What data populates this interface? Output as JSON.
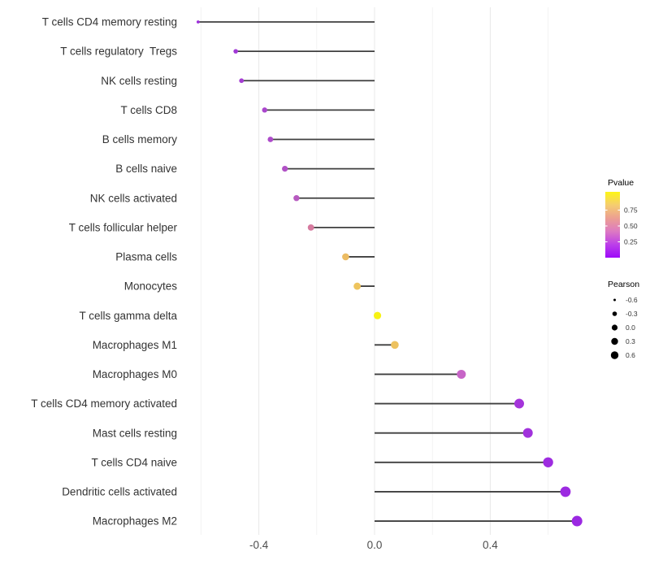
{
  "chart_data": {
    "type": "scatter",
    "variant": "lollipop",
    "title": "",
    "xlabel": "",
    "ylabel": "",
    "xlim": [
      -0.67,
      0.77
    ],
    "x_major_ticks": [
      -0.4,
      0.0,
      0.4
    ],
    "x_tick_labels": [
      "-0.4",
      "0.0",
      "0.4"
    ],
    "x_minor_gridlines": [
      -0.6,
      -0.2,
      0.2,
      0.6
    ],
    "grid": "vertical-only",
    "legend_position": "right",
    "categories": [
      "T cells CD4 memory resting",
      "T cells regulatory  Tregs",
      "NK cells resting",
      "T cells CD8",
      "B cells memory",
      "B cells naive",
      "NK cells activated",
      "T cells follicular helper",
      "Plasma cells",
      "Monocytes",
      "T cells gamma delta",
      "Macrophages M1",
      "Macrophages M0",
      "T cells CD4 memory activated",
      "Mast cells resting",
      "T cells CD4 naive",
      "Dendritic cells activated",
      "Macrophages M2"
    ],
    "points": [
      {
        "label": "T cells CD4 memory resting",
        "pearson": -0.61,
        "pvalue": 0.02,
        "color": "#9e2fdc",
        "radius": 1.9
      },
      {
        "label": "T cells regulatory  Tregs",
        "pearson": -0.48,
        "pvalue": 0.04,
        "color": "#a138d6",
        "radius": 2.8
      },
      {
        "label": "NK cells resting",
        "pearson": -0.46,
        "pvalue": 0.05,
        "color": "#a43dd2",
        "radius": 2.9
      },
      {
        "label": "T cells CD8",
        "pearson": -0.38,
        "pvalue": 0.08,
        "color": "#aa46cd",
        "radius": 3.2
      },
      {
        "label": "B cells memory",
        "pearson": -0.36,
        "pvalue": 0.09,
        "color": "#ad4aca",
        "radius": 3.4
      },
      {
        "label": "B cells naive",
        "pearson": -0.31,
        "pvalue": 0.11,
        "color": "#b151c6",
        "radius": 3.6
      },
      {
        "label": "NK cells activated",
        "pearson": -0.27,
        "pvalue": 0.15,
        "color": "#b75ac0",
        "radius": 3.7
      },
      {
        "label": "T cells follicular helper",
        "pearson": -0.22,
        "pvalue": 0.45,
        "color": "#d67a9f",
        "radius": 3.9
      },
      {
        "label": "Plasma cells",
        "pearson": -0.1,
        "pvalue": 0.75,
        "color": "#ecbc63",
        "radius": 4.3
      },
      {
        "label": "Monocytes",
        "pearson": -0.06,
        "pvalue": 0.78,
        "color": "#eec45d",
        "radius": 4.4
      },
      {
        "label": "T cells gamma delta",
        "pearson": 0.01,
        "pvalue": 0.97,
        "color": "#f7f214",
        "radius": 4.6
      },
      {
        "label": "Macrophages M1",
        "pearson": 0.07,
        "pvalue": 0.77,
        "color": "#edc25f",
        "radius": 4.8
      },
      {
        "label": "Macrophages M0",
        "pearson": 0.3,
        "pvalue": 0.32,
        "color": "#c765c7",
        "radius": 5.5
      },
      {
        "label": "T cells CD4 memory activated",
        "pearson": 0.5,
        "pvalue": 0.06,
        "color": "#a434da",
        "radius": 6.0
      },
      {
        "label": "Mast cells resting",
        "pearson": 0.53,
        "pvalue": 0.05,
        "color": "#a132dc",
        "radius": 6.0
      },
      {
        "label": "T cells CD4 naive",
        "pearson": 0.6,
        "pvalue": 0.03,
        "color": "#9e2ce0",
        "radius": 6.2
      },
      {
        "label": "Dendritic cells activated",
        "pearson": 0.66,
        "pvalue": 0.02,
        "color": "#9c2ae1",
        "radius": 6.4
      },
      {
        "label": "Macrophages M2",
        "pearson": 0.7,
        "pvalue": 0.02,
        "color": "#9b28e2",
        "radius": 6.5
      }
    ]
  },
  "legend": {
    "pvalue": {
      "title": "Pvalue",
      "range": [
        0,
        1
      ],
      "tick_labels": [
        "0.75",
        "0.50",
        "0.25"
      ],
      "tick_values": [
        0.75,
        0.5,
        0.25
      ],
      "gradient_top_to_bottom": [
        "#fdf515",
        "#f5cd70",
        "#ec9f92",
        "#dd7ac2",
        "#bc3fe9",
        "#9d09f9"
      ]
    },
    "pearson": {
      "title": "Pearson",
      "key_color": "#000000",
      "items": [
        {
          "label": "-0.6",
          "radius": 1.5
        },
        {
          "label": "-0.3",
          "radius": 2.8
        },
        {
          "label": "0.0",
          "radius": 3.6
        },
        {
          "label": "0.3",
          "radius": 4.2
        },
        {
          "label": "0.6",
          "radius": 4.7
        }
      ]
    }
  },
  "style": {
    "background": "#ffffff",
    "stem_color": "#3f3f3f",
    "grid_major_color": "#e8e8e8",
    "grid_minor_color": "#f3f3f3",
    "category_label_color": "#333333",
    "axis_tick_label_color": "#4d4d4d",
    "legend_text_color": "#333333"
  }
}
